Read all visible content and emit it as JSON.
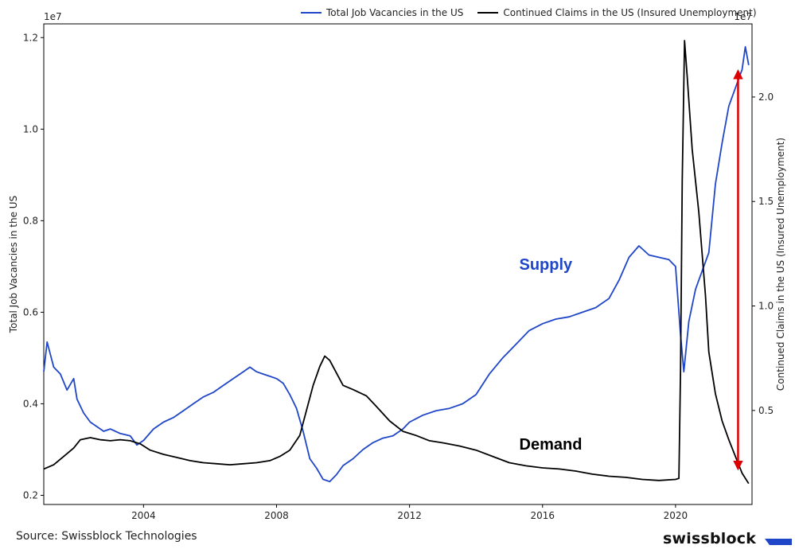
{
  "chart_data": {
    "type": "line",
    "title": "",
    "xlabel": "",
    "x_ticks": [
      "2004",
      "2008",
      "2012",
      "2016",
      "2020"
    ],
    "x_range": [
      2001.0,
      2022.3
    ],
    "left_axis": {
      "label": "Total Job Vacancies in the US",
      "scale_label": "1e7",
      "range": [
        0.18,
        1.23
      ],
      "ticks": [
        "0.2",
        "0.4",
        "0.6",
        "0.8",
        "1.0",
        "1.2"
      ]
    },
    "right_axis": {
      "label": "Continued Claims in the US (Insured Unemployment)",
      "scale_label": "1e7",
      "range": [
        0.05,
        2.35
      ],
      "ticks": [
        "0.5",
        "1.0",
        "1.5",
        "2.0"
      ]
    },
    "legend": [
      {
        "name": "Total Job Vacancies in the US",
        "color": "#1f46c8"
      },
      {
        "name": "Continued Claims in the US (Insured Unemployment)",
        "color": "#000000"
      }
    ],
    "series": [
      {
        "name": "Total Job Vacancies in the US",
        "axis": "left",
        "color": "#1f46c8",
        "points": [
          [
            2001.0,
            0.47
          ],
          [
            2001.1,
            0.535
          ],
          [
            2001.3,
            0.48
          ],
          [
            2001.5,
            0.465
          ],
          [
            2001.7,
            0.43
          ],
          [
            2001.9,
            0.455
          ],
          [
            2002.0,
            0.41
          ],
          [
            2002.2,
            0.38
          ],
          [
            2002.4,
            0.36
          ],
          [
            2002.6,
            0.35
          ],
          [
            2002.8,
            0.34
          ],
          [
            2003.0,
            0.345
          ],
          [
            2003.3,
            0.335
          ],
          [
            2003.6,
            0.33
          ],
          [
            2003.8,
            0.31
          ],
          [
            2004.0,
            0.32
          ],
          [
            2004.3,
            0.345
          ],
          [
            2004.6,
            0.36
          ],
          [
            2004.9,
            0.37
          ],
          [
            2005.2,
            0.385
          ],
          [
            2005.5,
            0.4
          ],
          [
            2005.8,
            0.415
          ],
          [
            2006.1,
            0.425
          ],
          [
            2006.4,
            0.44
          ],
          [
            2006.7,
            0.455
          ],
          [
            2007.0,
            0.47
          ],
          [
            2007.2,
            0.48
          ],
          [
            2007.4,
            0.47
          ],
          [
            2007.6,
            0.465
          ],
          [
            2007.8,
            0.46
          ],
          [
            2008.0,
            0.455
          ],
          [
            2008.2,
            0.445
          ],
          [
            2008.4,
            0.42
          ],
          [
            2008.6,
            0.39
          ],
          [
            2008.8,
            0.34
          ],
          [
            2009.0,
            0.28
          ],
          [
            2009.2,
            0.26
          ],
          [
            2009.4,
            0.235
          ],
          [
            2009.6,
            0.23
          ],
          [
            2009.8,
            0.245
          ],
          [
            2010.0,
            0.265
          ],
          [
            2010.3,
            0.28
          ],
          [
            2010.6,
            0.3
          ],
          [
            2010.9,
            0.315
          ],
          [
            2011.2,
            0.325
          ],
          [
            2011.5,
            0.33
          ],
          [
            2011.8,
            0.345
          ],
          [
            2012.0,
            0.36
          ],
          [
            2012.4,
            0.375
          ],
          [
            2012.8,
            0.385
          ],
          [
            2013.2,
            0.39
          ],
          [
            2013.6,
            0.4
          ],
          [
            2014.0,
            0.42
          ],
          [
            2014.4,
            0.465
          ],
          [
            2014.8,
            0.5
          ],
          [
            2015.2,
            0.53
          ],
          [
            2015.6,
            0.56
          ],
          [
            2016.0,
            0.575
          ],
          [
            2016.4,
            0.585
          ],
          [
            2016.8,
            0.59
          ],
          [
            2017.2,
            0.6
          ],
          [
            2017.6,
            0.61
          ],
          [
            2018.0,
            0.63
          ],
          [
            2018.3,
            0.67
          ],
          [
            2018.6,
            0.72
          ],
          [
            2018.9,
            0.745
          ],
          [
            2019.2,
            0.725
          ],
          [
            2019.5,
            0.72
          ],
          [
            2019.8,
            0.715
          ],
          [
            2020.0,
            0.7
          ],
          [
            2020.15,
            0.55
          ],
          [
            2020.25,
            0.47
          ],
          [
            2020.4,
            0.58
          ],
          [
            2020.6,
            0.65
          ],
          [
            2020.8,
            0.69
          ],
          [
            2021.0,
            0.73
          ],
          [
            2021.2,
            0.88
          ],
          [
            2021.4,
            0.97
          ],
          [
            2021.6,
            1.05
          ],
          [
            2021.8,
            1.09
          ],
          [
            2022.0,
            1.13
          ],
          [
            2022.1,
            1.18
          ],
          [
            2022.2,
            1.14
          ]
        ]
      },
      {
        "name": "Continued Claims in the US (Insured Unemployment)",
        "axis": "right",
        "color": "#000000",
        "points": [
          [
            2001.0,
            0.22
          ],
          [
            2001.3,
            0.24
          ],
          [
            2001.6,
            0.28
          ],
          [
            2001.9,
            0.32
          ],
          [
            2002.1,
            0.36
          ],
          [
            2002.4,
            0.37
          ],
          [
            2002.7,
            0.36
          ],
          [
            2003.0,
            0.355
          ],
          [
            2003.3,
            0.36
          ],
          [
            2003.6,
            0.355
          ],
          [
            2003.9,
            0.34
          ],
          [
            2004.2,
            0.31
          ],
          [
            2004.6,
            0.29
          ],
          [
            2005.0,
            0.275
          ],
          [
            2005.4,
            0.26
          ],
          [
            2005.8,
            0.25
          ],
          [
            2006.2,
            0.245
          ],
          [
            2006.6,
            0.24
          ],
          [
            2007.0,
            0.245
          ],
          [
            2007.4,
            0.25
          ],
          [
            2007.8,
            0.26
          ],
          [
            2008.1,
            0.28
          ],
          [
            2008.4,
            0.31
          ],
          [
            2008.7,
            0.38
          ],
          [
            2008.9,
            0.5
          ],
          [
            2009.1,
            0.62
          ],
          [
            2009.3,
            0.71
          ],
          [
            2009.45,
            0.76
          ],
          [
            2009.6,
            0.74
          ],
          [
            2009.8,
            0.68
          ],
          [
            2010.0,
            0.62
          ],
          [
            2010.3,
            0.6
          ],
          [
            2010.7,
            0.57
          ],
          [
            2011.0,
            0.52
          ],
          [
            2011.4,
            0.45
          ],
          [
            2011.8,
            0.4
          ],
          [
            2012.2,
            0.38
          ],
          [
            2012.6,
            0.355
          ],
          [
            2013.0,
            0.345
          ],
          [
            2013.5,
            0.33
          ],
          [
            2014.0,
            0.31
          ],
          [
            2014.5,
            0.28
          ],
          [
            2015.0,
            0.25
          ],
          [
            2015.5,
            0.235
          ],
          [
            2016.0,
            0.225
          ],
          [
            2016.5,
            0.22
          ],
          [
            2017.0,
            0.21
          ],
          [
            2017.5,
            0.195
          ],
          [
            2018.0,
            0.185
          ],
          [
            2018.5,
            0.18
          ],
          [
            2019.0,
            0.17
          ],
          [
            2019.5,
            0.165
          ],
          [
            2020.0,
            0.17
          ],
          [
            2020.1,
            0.175
          ],
          [
            2020.15,
            0.7
          ],
          [
            2020.2,
            1.6
          ],
          [
            2020.27,
            2.27
          ],
          [
            2020.35,
            2.1
          ],
          [
            2020.5,
            1.75
          ],
          [
            2020.7,
            1.45
          ],
          [
            2020.9,
            1.05
          ],
          [
            2021.0,
            0.78
          ],
          [
            2021.2,
            0.58
          ],
          [
            2021.4,
            0.45
          ],
          [
            2021.6,
            0.36
          ],
          [
            2021.8,
            0.28
          ],
          [
            2022.0,
            0.2
          ],
          [
            2022.2,
            0.15
          ]
        ]
      }
    ],
    "annotations": [
      {
        "text": "Supply",
        "color": "#1f46c8",
        "x": 2015.3,
        "axis": "left",
        "y": 0.693
      },
      {
        "text": "Demand",
        "color": "#000000",
        "x": 2015.3,
        "axis": "left",
        "y": 0.3
      }
    ],
    "arrow": {
      "x": 2021.88,
      "y_top": 1.12,
      "y_bottom": 0.265,
      "axis": "left",
      "color": "#dd0000"
    }
  },
  "footer": {
    "source": "Source: Swissblock Technologies",
    "brand": "swissblock"
  }
}
